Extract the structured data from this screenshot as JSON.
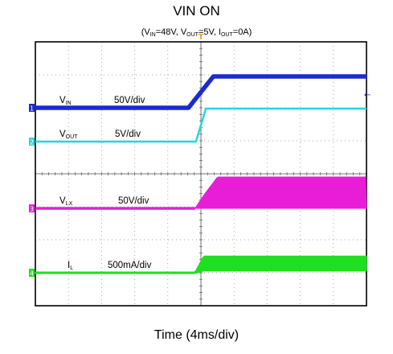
{
  "title": "VIN ON",
  "conditions": {
    "open": "(",
    "vin_main": "V",
    "vin_sub": "IN",
    "vin_val": "=48V, ",
    "vout_main": "V",
    "vout_sub": "OUT",
    "vout_val": "=5V, ",
    "iout_main": "I",
    "iout_sub": "OUT",
    "iout_val": "=0A)"
  },
  "xlabel": "Time (4ms/div)",
  "colors": {
    "vin": "#1c2bd0",
    "vout": "#23d7dc",
    "vlx": "#e81ed6",
    "il": "#1ee01e",
    "trigger": "#e8a628",
    "grid": "#8a8a8a",
    "frame": "#000000"
  },
  "chart_data": {
    "type": "line",
    "x_unit": "ms",
    "x_per_div": 4,
    "x_divisions": 10,
    "y_divisions": 8,
    "grid": true,
    "trigger_marker": "T",
    "series": [
      {
        "name": "VIN",
        "label_main": "V",
        "label_sub": "IN",
        "scale": "50V/div",
        "ground_marker": "1",
        "style": "line",
        "x": [
          0,
          18.5,
          21.5,
          40
        ],
        "level_div": [
          0,
          0,
          0.95,
          0.95
        ]
      },
      {
        "name": "VOUT",
        "label_main": "V",
        "label_sub": "OUT",
        "scale": "5V/div",
        "ground_marker": "2",
        "style": "line",
        "x": [
          0,
          19.4,
          20.6,
          40
        ],
        "level_div": [
          0,
          0,
          1.0,
          1.0
        ]
      },
      {
        "name": "VLX",
        "label_main": "V",
        "label_sub": "LX",
        "scale": "50V/div",
        "ground_marker": "3",
        "style": "switching",
        "x": [
          0,
          19.3,
          20.2,
          22.0,
          40
        ],
        "level_div": [
          0,
          0,
          0.35,
          0.95,
          0.95
        ]
      },
      {
        "name": "IL",
        "label_main": "I",
        "label_sub": "L",
        "scale": "500mA/div",
        "ground_marker": "4",
        "style": "ripple",
        "x": [
          0,
          19.3,
          20.3,
          40
        ],
        "level_div": [
          0,
          0,
          0.28,
          0.28
        ],
        "ripple_div": [
          0.05,
          0.05,
          0.45,
          0.45
        ]
      }
    ]
  }
}
